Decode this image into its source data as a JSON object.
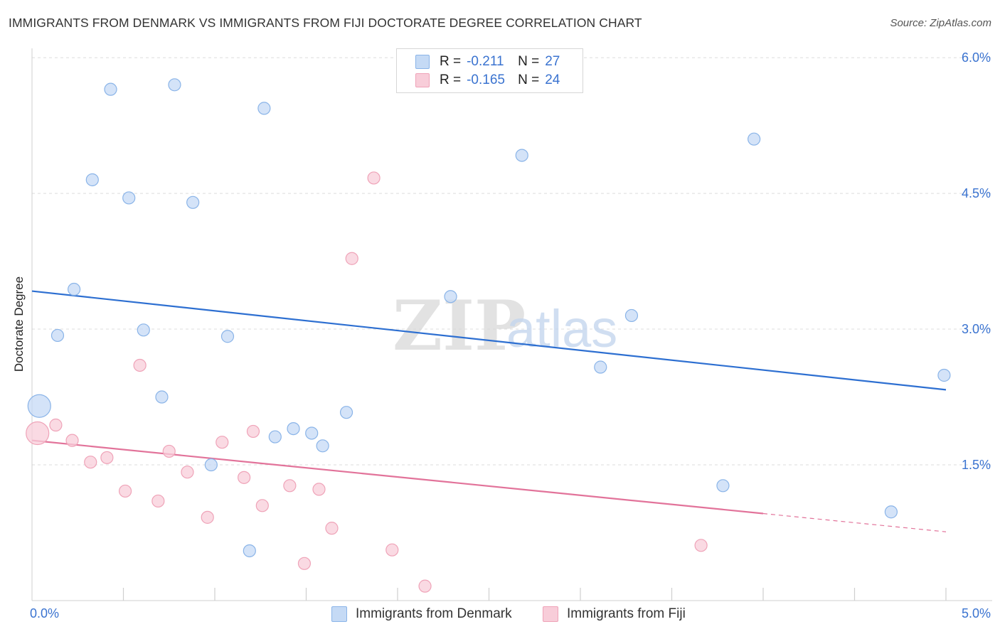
{
  "title": "IMMIGRANTS FROM DENMARK VS IMMIGRANTS FROM FIJI DOCTORATE DEGREE CORRELATION CHART",
  "source": "Source: ZipAtlas.com",
  "watermark": {
    "zip": "ZIP",
    "atlas": "atlas"
  },
  "legend": {
    "r_label": "R =",
    "n_label": "N =",
    "rows": [
      {
        "r": "-0.211",
        "n": "27"
      },
      {
        "r": "-0.165",
        "n": "24"
      }
    ]
  },
  "colors": {
    "denmark_fill": "#c5daf5",
    "denmark_stroke": "#8ab4e8",
    "denmark_line": "#2d6fd1",
    "fiji_fill": "#f8cdd9",
    "fiji_stroke": "#efa3b8",
    "fiji_line": "#e2739a",
    "tick_label": "#3a73d0"
  },
  "chart_data": {
    "type": "scatter",
    "title": "IMMIGRANTS FROM DENMARK VS IMMIGRANTS FROM FIJI DOCTORATE DEGREE CORRELATION CHART",
    "xlabel": "",
    "ylabel": "Doctorate Degree",
    "xlim": [
      0,
      5
    ],
    "ylim": [
      0,
      6.15
    ],
    "x_tick_labels": [
      "0.0%",
      "5.0%"
    ],
    "y_ticks": [
      1.5,
      3.0,
      4.5,
      6.0
    ],
    "y_tick_labels": [
      "1.5%",
      "3.0%",
      "4.5%",
      "6.0%"
    ],
    "grid": true,
    "legend_position": "top-center",
    "series": [
      {
        "name": "Immigrants from Denmark",
        "r": -0.211,
        "n": 27,
        "trend": {
          "x": [
            0,
            5
          ],
          "y": [
            3.42,
            2.33
          ],
          "dashed_from": null
        },
        "points": [
          {
            "x": 0.04,
            "y": 2.15,
            "size": "large"
          },
          {
            "x": 0.14,
            "y": 2.93
          },
          {
            "x": 0.23,
            "y": 3.44
          },
          {
            "x": 0.33,
            "y": 4.65
          },
          {
            "x": 0.43,
            "y": 5.65
          },
          {
            "x": 0.53,
            "y": 4.45
          },
          {
            "x": 0.61,
            "y": 2.99
          },
          {
            "x": 0.71,
            "y": 2.25
          },
          {
            "x": 0.78,
            "y": 5.7
          },
          {
            "x": 0.88,
            "y": 4.4
          },
          {
            "x": 0.98,
            "y": 1.5
          },
          {
            "x": 1.07,
            "y": 2.92
          },
          {
            "x": 1.19,
            "y": 0.55
          },
          {
            "x": 1.27,
            "y": 5.44
          },
          {
            "x": 1.33,
            "y": 1.81
          },
          {
            "x": 1.43,
            "y": 1.9
          },
          {
            "x": 1.53,
            "y": 1.85
          },
          {
            "x": 1.59,
            "y": 1.71
          },
          {
            "x": 1.72,
            "y": 2.08
          },
          {
            "x": 2.29,
            "y": 3.36
          },
          {
            "x": 2.68,
            "y": 4.92
          },
          {
            "x": 3.11,
            "y": 2.58
          },
          {
            "x": 3.28,
            "y": 3.15
          },
          {
            "x": 3.78,
            "y": 1.27
          },
          {
            "x": 3.95,
            "y": 5.1
          },
          {
            "x": 4.7,
            "y": 0.98
          },
          {
            "x": 4.99,
            "y": 2.49
          }
        ]
      },
      {
        "name": "Immigrants from Fiji",
        "r": -0.165,
        "n": 24,
        "trend": {
          "x": [
            0,
            5
          ],
          "y": [
            1.77,
            0.76
          ],
          "dashed_from": 4.0
        },
        "points": [
          {
            "x": 0.03,
            "y": 1.85,
            "size": "large"
          },
          {
            "x": 0.13,
            "y": 1.94
          },
          {
            "x": 0.22,
            "y": 1.77
          },
          {
            "x": 0.32,
            "y": 1.53
          },
          {
            "x": 0.41,
            "y": 1.58
          },
          {
            "x": 0.51,
            "y": 1.21
          },
          {
            "x": 0.59,
            "y": 2.6
          },
          {
            "x": 0.69,
            "y": 1.1
          },
          {
            "x": 0.75,
            "y": 1.65
          },
          {
            "x": 0.85,
            "y": 1.42
          },
          {
            "x": 0.96,
            "y": 0.92
          },
          {
            "x": 1.04,
            "y": 1.75
          },
          {
            "x": 1.16,
            "y": 1.36
          },
          {
            "x": 1.26,
            "y": 1.05
          },
          {
            "x": 1.21,
            "y": 1.87
          },
          {
            "x": 1.41,
            "y": 1.27
          },
          {
            "x": 1.49,
            "y": 0.41
          },
          {
            "x": 1.57,
            "y": 1.23
          },
          {
            "x": 1.64,
            "y": 0.8
          },
          {
            "x": 1.75,
            "y": 3.78
          },
          {
            "x": 1.87,
            "y": 4.67
          },
          {
            "x": 1.97,
            "y": 0.56
          },
          {
            "x": 2.15,
            "y": 0.16
          },
          {
            "x": 3.66,
            "y": 0.61
          }
        ]
      }
    ]
  }
}
